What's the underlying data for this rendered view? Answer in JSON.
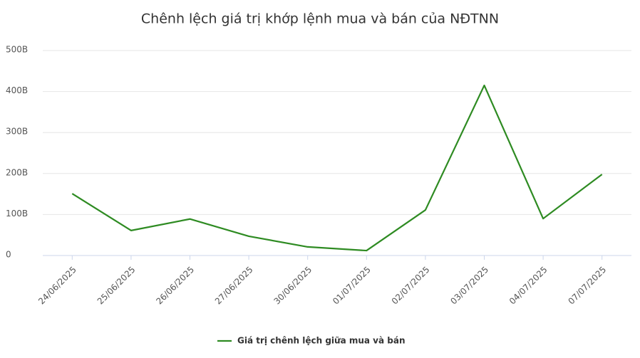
{
  "chart_data": {
    "type": "line",
    "title": "Chênh lệch giá trị khớp lệnh mua và bán của NĐTNN",
    "categories": [
      "24/06/2025",
      "25/06/2025",
      "26/06/2025",
      "27/06/2025",
      "30/06/2025",
      "01/07/2025",
      "02/07/2025",
      "03/07/2025",
      "04/07/2025",
      "07/07/2025"
    ],
    "series": [
      {
        "name": "Giá trị chênh lệch giữa mua và bán",
        "color": "#2e8b22",
        "values": [
          151,
          61,
          89,
          47,
          21,
          12,
          111,
          415,
          90,
          198
        ]
      }
    ],
    "ylim": [
      0,
      500
    ],
    "yticks": [
      0,
      {
        "value": 100,
        "label": "100B"
      },
      {
        "value": 200,
        "label": "200B"
      },
      {
        "value": 300,
        "label": "300B"
      },
      {
        "value": 400,
        "label": "400B"
      },
      {
        "value": 500,
        "label": "500B"
      }
    ],
    "grid": true,
    "legend": "bottom"
  }
}
